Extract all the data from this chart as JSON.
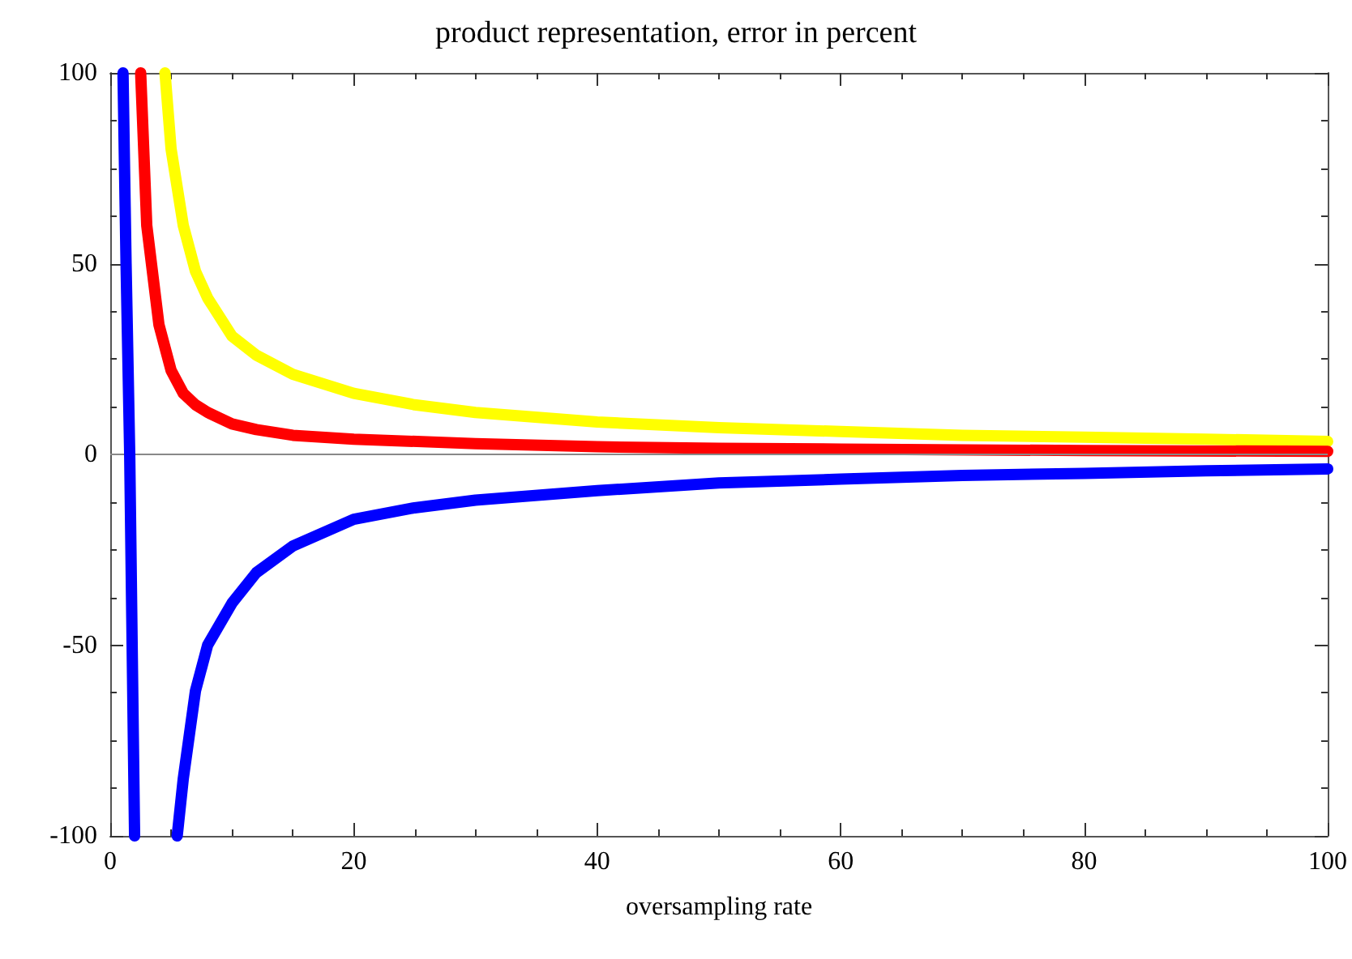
{
  "chart_data": {
    "type": "line",
    "title": "product representation, error in percent",
    "xlabel": "oversampling rate",
    "xlim": [
      0,
      100
    ],
    "xticks": [
      0,
      20,
      40,
      60,
      80,
      100
    ],
    "ylim": [
      -100,
      100
    ],
    "yticks": [
      -100,
      -50,
      0,
      50,
      100
    ],
    "grid": false,
    "line_style": "solid",
    "ref_lines": [
      {
        "axis": "y",
        "value": 0,
        "color": "#888888"
      }
    ],
    "series": [
      {
        "color": "#ffff00",
        "x": [
          4.5,
          5,
          6,
          7,
          8,
          10,
          12,
          15,
          20,
          25,
          30,
          40,
          50,
          60,
          70,
          80,
          90,
          100
        ],
        "values": [
          100,
          80,
          60,
          48,
          41,
          31,
          26,
          21,
          16,
          13,
          11,
          8.5,
          7,
          6,
          5,
          4.5,
          4,
          3.4
        ]
      },
      {
        "color": "#ff0000",
        "x": [
          2.5,
          3,
          4,
          5,
          6,
          7,
          8,
          10,
          12,
          15,
          20,
          30,
          40,
          50,
          60,
          80,
          100
        ],
        "values": [
          100,
          60,
          34,
          22,
          16,
          13,
          11,
          8,
          6.5,
          5,
          4,
          2.8,
          2,
          1.6,
          1.4,
          1,
          0.8
        ]
      },
      {
        "color": "#0000ff",
        "x": [
          1.05,
          1.3,
          1.6,
          1.8,
          2.0,
          3,
          5.5,
          6,
          7,
          8,
          10,
          12,
          15,
          20,
          25,
          30,
          40,
          50,
          60,
          70,
          80,
          90,
          100
        ],
        "values": [
          100,
          50,
          0,
          -50,
          -100,
          null,
          -100,
          -85,
          -62,
          -50,
          -39,
          -31,
          -24,
          -17,
          -14,
          -12,
          -9.5,
          -7.5,
          -6.5,
          -5.5,
          -5,
          -4.3,
          -3.8
        ]
      }
    ]
  }
}
